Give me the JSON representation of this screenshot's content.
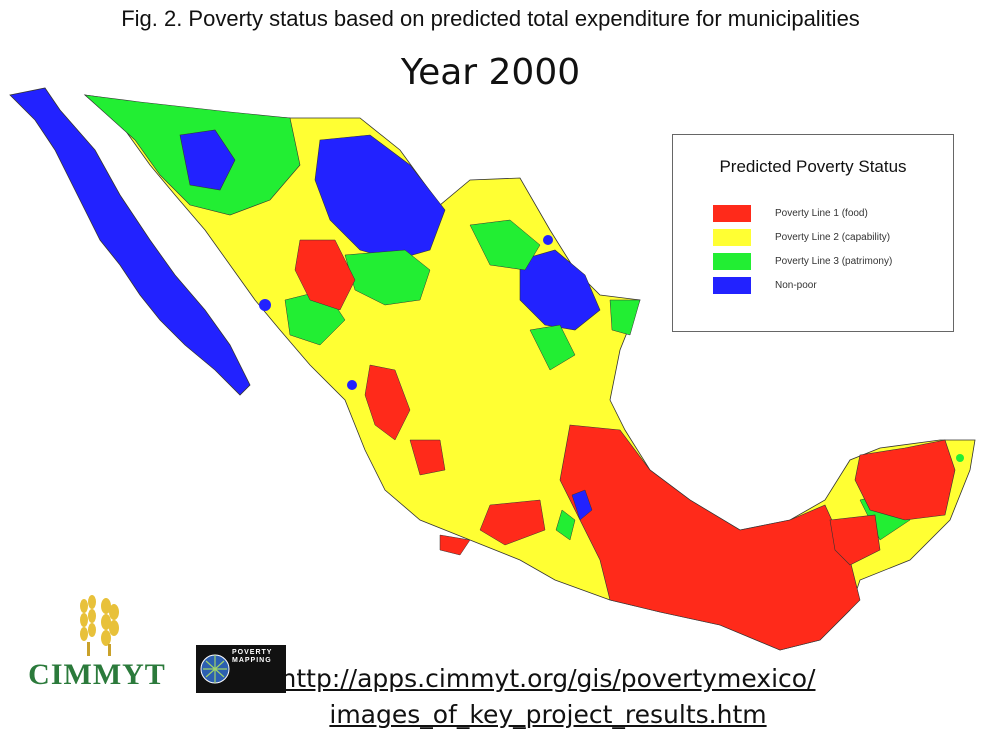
{
  "figure_title": "Fig. 2. Poverty status based on predicted total expenditure for municipalities",
  "year_title": "Year 2000",
  "legend": {
    "title": "Predicted Poverty Status",
    "items": [
      {
        "label": "Poverty Line 1 (food)",
        "color": "#ff2a1a"
      },
      {
        "label": "Poverty Line 2 (capability)",
        "color": "#ffff33"
      },
      {
        "label": "Poverty Line 3 (patrimony)",
        "color": "#22ee33"
      },
      {
        "label": "Non-poor",
        "color": "#2222ff"
      }
    ]
  },
  "logos": {
    "cimmyt": "CIMMYT",
    "poverty_mapping": "POVERTY MAPPING"
  },
  "source_url": {
    "line1": "http://apps.cimmyt.org/gis/povertymexico/",
    "line2": "images_of_key_project_results.htm"
  },
  "colors": {
    "food": "#ff2a1a",
    "capability": "#ffff33",
    "patrimony": "#22ee33",
    "non_poor": "#2222ff",
    "borders": "#333333"
  }
}
